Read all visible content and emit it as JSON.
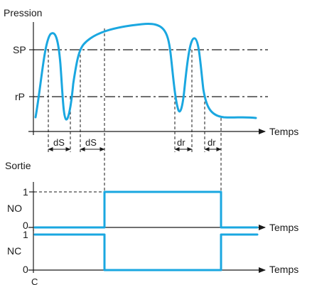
{
  "pressure_chart": {
    "ylabel": "Pression",
    "xlabel": "Temps",
    "level_high": "SP",
    "level_low": "rP",
    "delays": [
      "dS",
      "dS",
      "dr",
      "dr"
    ]
  },
  "output_section": {
    "title": "Sortie"
  },
  "no_chart": {
    "label": "NO",
    "tick_high": "1",
    "tick_low": "0",
    "xlabel": "Temps"
  },
  "nc_chart": {
    "label": "NC",
    "tick_high": "1",
    "tick_low": "0",
    "xlabel": "Temps"
  },
  "footer_fragment": "C",
  "colors": {
    "signal": "#1aa7e0",
    "lines": "#1a1a1a"
  }
}
